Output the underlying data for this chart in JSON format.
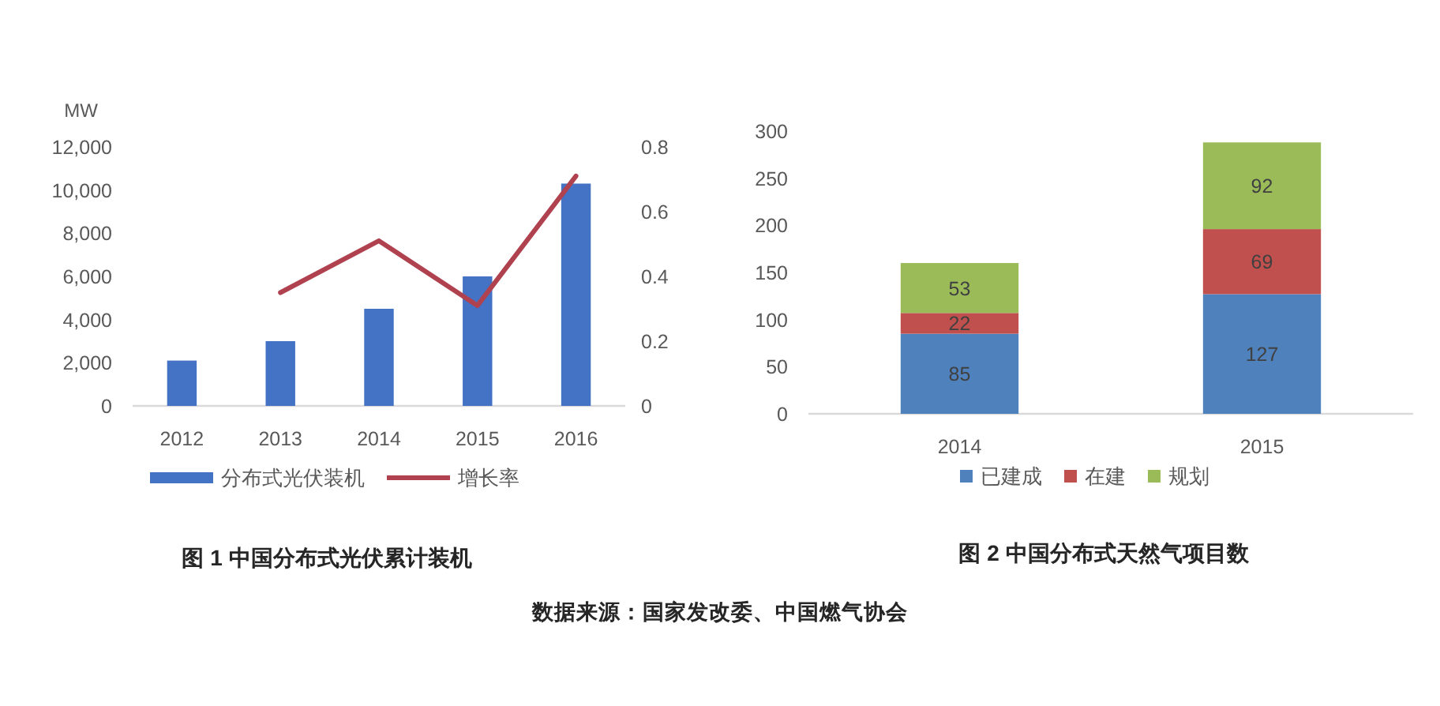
{
  "chart_data": [
    {
      "type": "bar",
      "title": "图 1 中国分布式光伏累计装机",
      "ylabel": "MW",
      "categories": [
        "2012",
        "2013",
        "2014",
        "2015",
        "2016"
      ],
      "series": [
        {
          "name": "分布式光伏装机",
          "color": "#4472c4",
          "values": [
            2100,
            3000,
            4500,
            6000,
            10300
          ]
        },
        {
          "name": "增长率",
          "type": "line",
          "axis": "y2",
          "color": "#b0424f",
          "values": [
            null,
            0.35,
            0.51,
            0.31,
            0.71
          ]
        }
      ],
      "ylim": [
        0,
        12000
      ],
      "yticks": [
        0,
        {
          "value": 2000,
          "label": "2,000"
        },
        {
          "value": 4000,
          "label": "4,000"
        },
        {
          "value": 6000,
          "label": "6,000"
        },
        {
          "value": 8000,
          "label": "8,000"
        },
        {
          "value": 10000,
          "label": "10,000"
        },
        {
          "value": 12000,
          "label": "12,000"
        }
      ],
      "y2lim": [
        0,
        0.8
      ],
      "y2ticks": [
        0,
        0.2,
        0.4,
        0.6,
        0.8
      ],
      "legend": "bottom",
      "grid": false
    },
    {
      "type": "bar",
      "stacked": true,
      "title": "图 2 中国分布式天然气项目数",
      "categories": [
        "2014",
        "2015"
      ],
      "series": [
        {
          "name": "已建成",
          "color": "#4f81bd",
          "values": [
            85,
            127
          ]
        },
        {
          "name": "在建",
          "color": "#c0504d",
          "values": [
            22,
            69
          ]
        },
        {
          "name": "规划",
          "color": "#9bbb59",
          "values": [
            53,
            92
          ]
        }
      ],
      "ylim": [
        0,
        300
      ],
      "yticks": [
        0,
        50,
        100,
        150,
        200,
        250,
        300
      ],
      "data_labels": true,
      "legend": "bottom",
      "grid": false,
      "annotations": [
        "数据来源：国家发改委、中国燃气协会"
      ]
    }
  ]
}
